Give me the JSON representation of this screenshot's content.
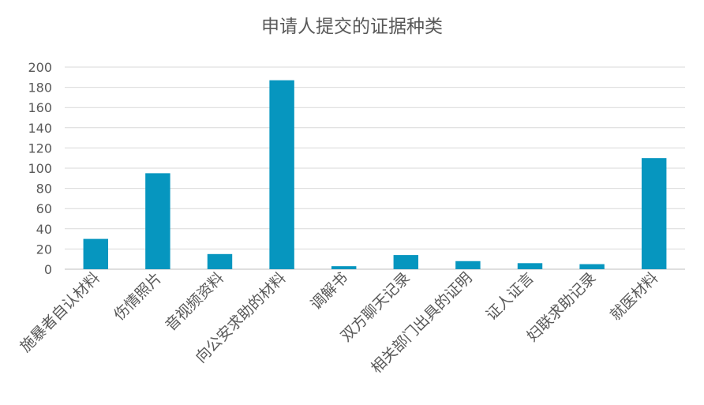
{
  "chart_data": {
    "type": "bar",
    "title": "申请人提交的证据种类",
    "categories": [
      "施暴者自认材料",
      "伤情照片",
      "音视频资料",
      "向公安求助的材料",
      "调解书",
      "双方聊天记录",
      "相关部门出具的证明",
      "证人证言",
      "妇联求助记录",
      "就医材料"
    ],
    "values": [
      30,
      95,
      15,
      187,
      3,
      14,
      8,
      6,
      5,
      110
    ],
    "ylim": [
      0,
      200
    ],
    "yticks": [
      0,
      20,
      40,
      60,
      80,
      100,
      120,
      140,
      160,
      180,
      200
    ],
    "xlabel": "",
    "ylabel": "",
    "grid": true,
    "colors": {
      "bar": "#0696BF",
      "grid": "#D9D9D9",
      "axis": "#BFBFBF",
      "text": "#595959"
    }
  }
}
